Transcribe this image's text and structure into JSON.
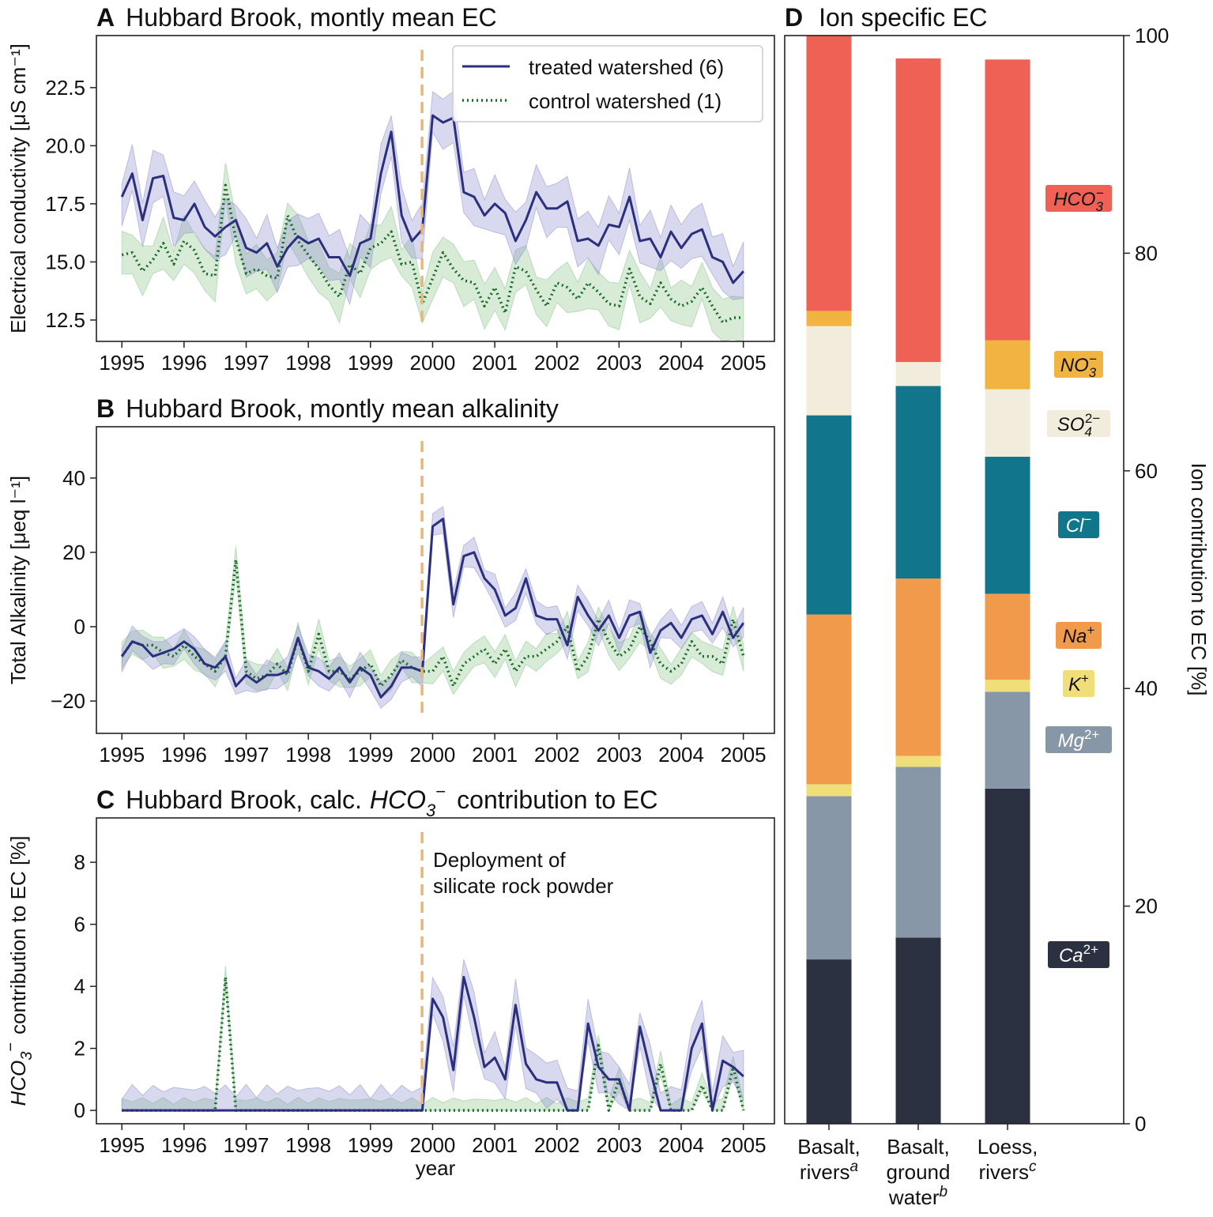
{
  "colors": {
    "treated": "#2b2f7e",
    "treated_band": "#8f8fd0",
    "control": "#1a6b2a",
    "control_band": "#8cc68c",
    "deployment": "#e8b57a"
  },
  "legend": {
    "treated": "treated watershed (6)",
    "control": "control watershed (1)"
  },
  "annotation": [
    "Deployment of",
    "silicate rock powder"
  ],
  "xlabel": "year",
  "chart_data": [
    {
      "type": "line",
      "panel": "A",
      "title": "Hubbard Brook, montly mean EC",
      "ylabel": "Electrical conductivity [μS cm⁻¹]",
      "xticks": [
        "1995",
        "1996",
        "1997",
        "1998",
        "1999",
        "2000",
        "2001",
        "2002",
        "2003",
        "2004",
        "2005"
      ],
      "yticks": [
        "12.5",
        "15.0",
        "17.5",
        "20.0",
        "22.5"
      ],
      "xlim": [
        1994.59,
        2005.5
      ],
      "ylim": [
        11.58,
        24.74
      ],
      "event_year": 1999.83,
      "x_start": 1995.0,
      "x_step": 0.1667,
      "series": [
        {
          "name": "treated watershed (6)",
          "spread": 0.9,
          "y": [
            17.8,
            18.8,
            16.8,
            18.6,
            18.7,
            16.9,
            16.8,
            17.5,
            16.5,
            16.1,
            16.5,
            16.8,
            15.6,
            15.4,
            15.8,
            14.8,
            15.6,
            16.1,
            15.8,
            16.0,
            15.2,
            15.2,
            14.4,
            15.8,
            16.0,
            18.8,
            20.6,
            17.0,
            15.9,
            16.4,
            21.3,
            21.0,
            21.2,
            18.0,
            17.8,
            17.0,
            17.5,
            17.1,
            15.9,
            16.8,
            18.0,
            17.3,
            17.3,
            17.6,
            15.9,
            16.0,
            15.7,
            16.6,
            16.5,
            17.8,
            15.9,
            16.0,
            15.2,
            16.3,
            15.6,
            16.2,
            16.4,
            15.2,
            15.0,
            14.1,
            14.6
          ]
        },
        {
          "name": "control watershed (1)",
          "spread": 0.8,
          "y": [
            15.3,
            15.4,
            14.6,
            15.1,
            15.8,
            14.9,
            15.9,
            15.5,
            14.5,
            14.4,
            18.3,
            16.0,
            14.5,
            14.7,
            14.4,
            14.3,
            17.0,
            15.9,
            15.3,
            14.7,
            14.0,
            13.5,
            14.9,
            14.5,
            15.6,
            15.8,
            16.3,
            14.9,
            15.0,
            13.2,
            14.3,
            15.4,
            14.7,
            14.2,
            14.1,
            13.1,
            13.9,
            12.8,
            14.8,
            14.6,
            13.8,
            13.1,
            14.1,
            13.9,
            13.4,
            14.1,
            13.7,
            13.2,
            13.1,
            14.7,
            13.5,
            13.2,
            14.1,
            13.4,
            13.1,
            13.3,
            13.9,
            13.1,
            12.4,
            12.6,
            12.6
          ]
        }
      ]
    },
    {
      "type": "line",
      "panel": "B",
      "title": "Hubbard Brook, montly mean alkalinity",
      "ylabel": "Total Alkalinity [μeq l⁻¹]",
      "xticks": [
        "1995",
        "1996",
        "1997",
        "1998",
        "1999",
        "2000",
        "2001",
        "2002",
        "2003",
        "2004",
        "2005"
      ],
      "yticks": [
        "−20",
        "0",
        "20",
        "40"
      ],
      "xlim": [
        1994.59,
        2005.5
      ],
      "ylim": [
        -28.7,
        53.8
      ],
      "event_year": 1999.83,
      "x_start": 1995.0,
      "x_step": 0.1667,
      "series": [
        {
          "name": "treated watershed (6)",
          "spread": 3,
          "y": [
            -8,
            -4,
            -5,
            -8,
            -7,
            -6,
            -4,
            -6,
            -10,
            -11,
            -8,
            -16,
            -13,
            -15,
            -13,
            -13,
            -12,
            -3,
            -11,
            -12,
            -14,
            -11,
            -15,
            -11,
            -13,
            -19,
            -16,
            -11,
            -11,
            -12,
            27,
            29,
            6,
            19,
            20,
            13,
            10,
            3,
            5,
            13,
            3,
            2,
            2,
            -5,
            8,
            3,
            -1,
            3,
            -3,
            3,
            4,
            -7,
            -1,
            1,
            -3,
            2,
            3,
            -2,
            4,
            -3,
            1
          ]
        },
        {
          "name": "control watershed (1)",
          "spread": 3,
          "y": [
            -8,
            -4,
            -5,
            -5,
            -7,
            -8,
            -5,
            -8,
            -10,
            -12,
            -8,
            18,
            -12,
            -14,
            -13,
            -10,
            -13,
            -3,
            -12,
            -2,
            -12,
            -12,
            -14,
            -12,
            -10,
            -16,
            -13,
            -9,
            -11,
            -12,
            -12,
            -8,
            -16,
            -10,
            -8,
            -6,
            -10,
            -6,
            -12,
            -8,
            -8,
            -6,
            -4,
            0,
            -12,
            -8,
            2,
            -4,
            -8,
            -6,
            0,
            -4,
            -10,
            -12,
            -10,
            -4,
            -8,
            -8,
            -10,
            2,
            -8
          ]
        }
      ]
    },
    {
      "type": "line",
      "panel": "C",
      "title_parts": [
        "Hubbard Brook, calc.",
        "HCO",
        "3",
        "−",
        "contribution to EC"
      ],
      "ylabel_parts": [
        "HCO",
        "3",
        "−",
        "contribution to EC [%]"
      ],
      "xticks": [
        "1995",
        "1996",
        "1997",
        "1998",
        "1999",
        "2000",
        "2001",
        "2002",
        "2003",
        "2004",
        "2005"
      ],
      "yticks": [
        "0",
        "2",
        "4",
        "6",
        "8"
      ],
      "xlim": [
        1994.59,
        2005.5
      ],
      "ylim": [
        -0.43,
        9.43
      ],
      "event_year": 1999.83,
      "x_start": 1995.0,
      "x_step": 0.1667,
      "series": [
        {
          "name": "treated watershed (6)",
          "spread": 0.6,
          "y": [
            0,
            0,
            0,
            0,
            0,
            0,
            0,
            0,
            0,
            0,
            0,
            0,
            0,
            0,
            0,
            0,
            0,
            0,
            0,
            0,
            0,
            0,
            0,
            0,
            0,
            0,
            0,
            0,
            0,
            0,
            3.6,
            3.0,
            1.3,
            4.3,
            3.0,
            1.4,
            1.7,
            1.0,
            3.4,
            1.5,
            1.0,
            0.9,
            0.9,
            0,
            0,
            2.8,
            1.4,
            1.0,
            1.0,
            0,
            2.7,
            1.3,
            0,
            0,
            0,
            2.0,
            2.8,
            0,
            1.6,
            1.4,
            1.1
          ]
        },
        {
          "name": "control watershed (1)",
          "spread": 0.3,
          "y": [
            0,
            0,
            0,
            0,
            0,
            0,
            0,
            0,
            0,
            0,
            4.3,
            0,
            0,
            0,
            0,
            0,
            0,
            0,
            0,
            0,
            0,
            0,
            0,
            0,
            0,
            0,
            0,
            0,
            0,
            0,
            0,
            0,
            0,
            0,
            0,
            0,
            0,
            0,
            0,
            0,
            0,
            0,
            0,
            0,
            0,
            0,
            2.1,
            0,
            1.0,
            0,
            0,
            0,
            1.5,
            0,
            0,
            0,
            0.8,
            0,
            0,
            1.4,
            0
          ]
        }
      ]
    },
    {
      "type": "bar",
      "stacked": true,
      "panel": "D",
      "title": "Ion specific EC",
      "ylabel": "Ion contribution to EC [%]",
      "ylim": [
        0,
        100
      ],
      "yticks": [
        "0",
        "20",
        "40",
        "60",
        "80",
        "100"
      ],
      "categories": [
        {
          "lines": [
            "Basalt,",
            "rivers"
          ],
          "sup": "a"
        },
        {
          "lines": [
            "Basalt,",
            "ground",
            "water"
          ],
          "sup": "b"
        },
        {
          "lines": [
            "Loess,",
            "rivers"
          ],
          "sup": "c"
        }
      ],
      "ions": [
        {
          "base": "Ca",
          "sup": "2+",
          "sub": "",
          "color": "#2b3140",
          "text_color": "#ffffff"
        },
        {
          "base": "Mg",
          "sup": "2+",
          "sub": "",
          "color": "#8797a8",
          "text_color": "#ffffff"
        },
        {
          "base": "K",
          "sup": "+",
          "sub": "",
          "color": "#f0de78",
          "text_color": "#111111"
        },
        {
          "base": "Na",
          "sup": "+",
          "sub": "",
          "color": "#f29a4c",
          "text_color": "#111111"
        },
        {
          "base": "Cl",
          "sup": "−",
          "sub": "",
          "color": "#11758c",
          "text_color": "#ffffff"
        },
        {
          "base": "SO",
          "sup": "2−",
          "sub": "4",
          "color": "#f2ecdc",
          "text_color": "#111111"
        },
        {
          "base": "NO",
          "sup": "−",
          "sub": "3",
          "color": "#f2b440",
          "text_color": "#111111"
        },
        {
          "base": "HCO",
          "sup": "−",
          "sub": "3",
          "color": "#ef6154",
          "text_color": "#111111"
        }
      ],
      "values": [
        [
          15.1,
          15.0,
          1.1,
          15.6,
          18.3,
          8.2,
          1.4,
          25.3
        ],
        [
          17.1,
          15.7,
          1.0,
          16.3,
          17.7,
          2.2,
          0.0,
          27.9
        ],
        [
          30.8,
          8.9,
          1.1,
          7.9,
          12.6,
          6.2,
          4.5,
          25.8
        ]
      ]
    }
  ]
}
